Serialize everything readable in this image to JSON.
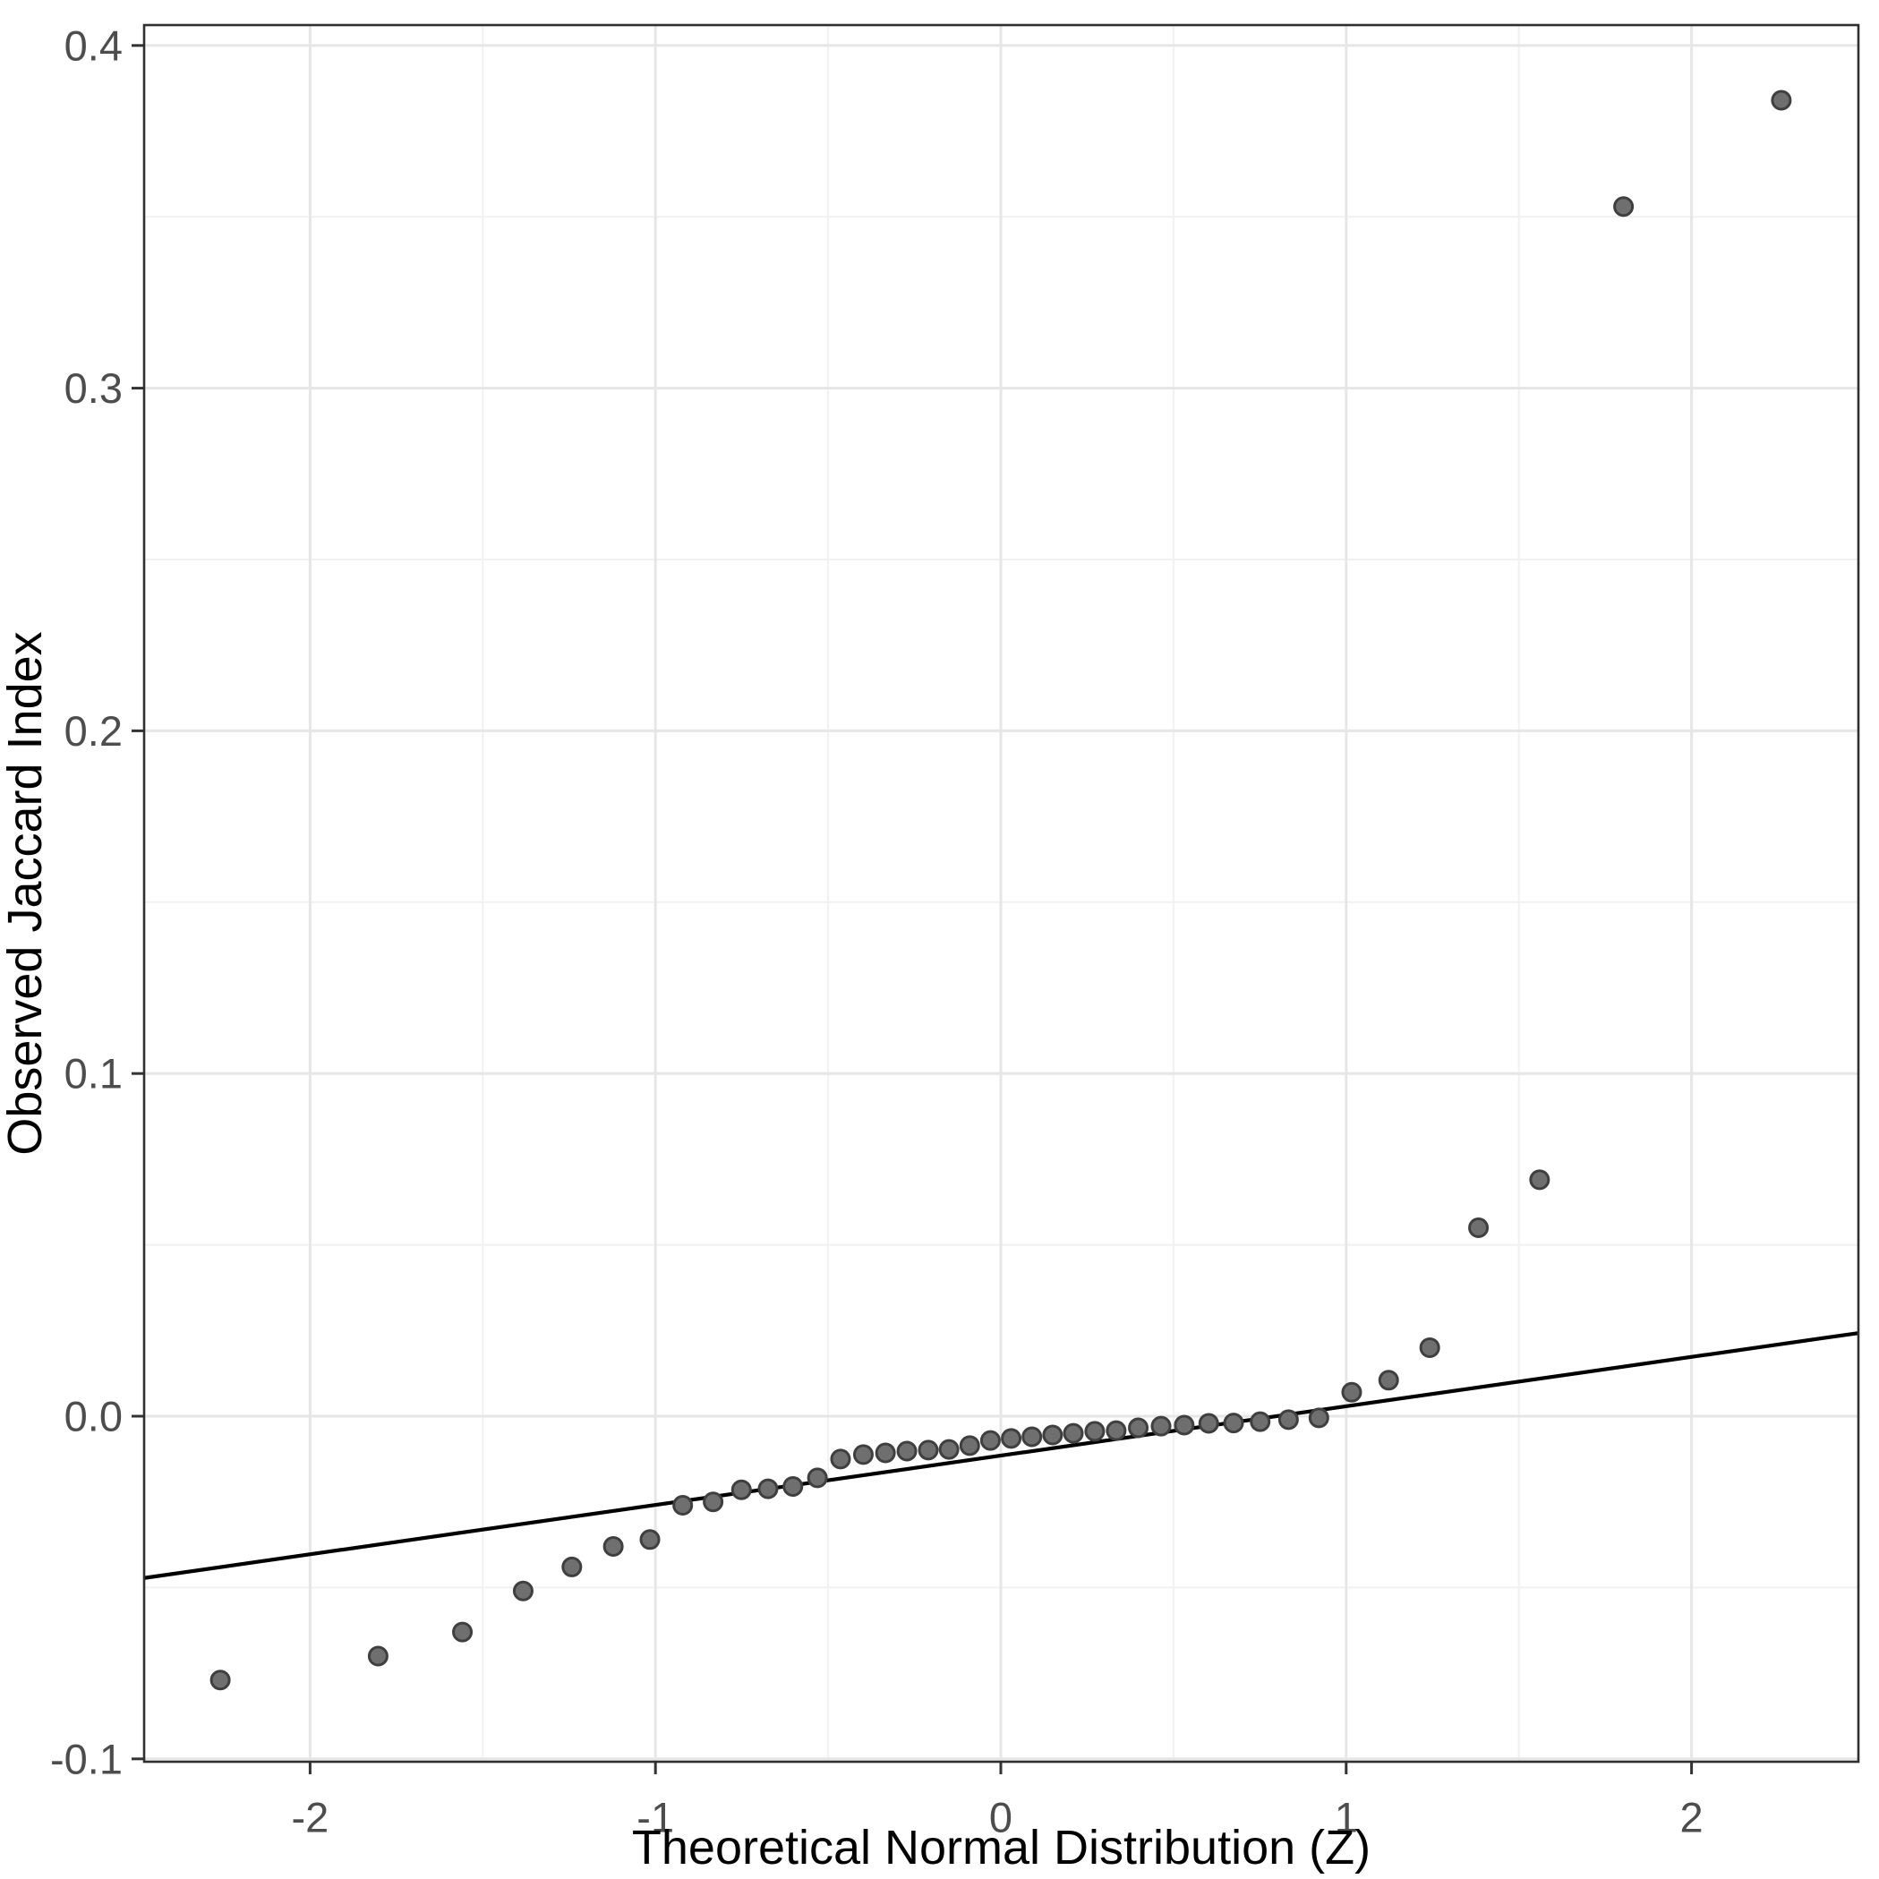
{
  "chart_data": {
    "type": "scatter",
    "subtype": "qq-plot",
    "title": "",
    "xlabel": "Theoretical Normal Distribution (Z)",
    "ylabel": "Observed Jaccard Index",
    "x_ticks": [
      -2,
      -1,
      0,
      1,
      2
    ],
    "x_tick_labels": [
      "-2",
      "-1",
      "0",
      "1",
      "2"
    ],
    "x_minor_ticks": [
      -1.5,
      -0.5,
      0.5,
      1.5
    ],
    "y_ticks": [
      -0.1,
      0.0,
      0.1,
      0.2,
      0.3,
      0.4
    ],
    "y_tick_labels": [
      "-0.1",
      "0.0",
      "0.1",
      "0.2",
      "0.3",
      "0.4"
    ],
    "y_minor_ticks": [
      -0.05,
      0.05,
      0.15,
      0.25,
      0.35
    ],
    "xlim": [
      -2.48,
      2.48
    ],
    "ylim": [
      -0.1,
      0.406
    ],
    "grid": true,
    "legend": "none",
    "n_points": 42,
    "points": {
      "z": [
        -2.26,
        -1.803,
        -1.559,
        -1.383,
        -1.242,
        -1.122,
        -1.016,
        -0.921,
        -0.833,
        -0.751,
        -0.674,
        -0.602,
        -0.531,
        -0.464,
        -0.398,
        -0.334,
        -0.272,
        -0.21,
        -0.15,
        -0.09,
        -0.03,
        0.03,
        0.09,
        0.15,
        0.21,
        0.272,
        0.334,
        0.398,
        0.464,
        0.531,
        0.602,
        0.674,
        0.751,
        0.833,
        0.921,
        1.016,
        1.123,
        1.242,
        1.383,
        1.56,
        1.803,
        2.26
      ],
      "observed": [
        -0.077,
        -0.07,
        -0.063,
        -0.051,
        -0.044,
        -0.038,
        -0.036,
        -0.026,
        -0.025,
        -0.0215,
        -0.0212,
        -0.0205,
        -0.018,
        -0.0125,
        -0.0112,
        -0.0107,
        -0.0102,
        -0.0099,
        -0.0097,
        -0.0086,
        -0.0071,
        -0.0065,
        -0.006,
        -0.0055,
        -0.005,
        -0.0044,
        -0.0042,
        -0.0034,
        -0.0029,
        -0.0026,
        -0.0021,
        -0.002,
        -0.0016,
        -0.001,
        -0.0005,
        0.007,
        0.0105,
        0.02,
        0.055,
        0.069,
        0.353,
        0.384
      ]
    },
    "reference_line": {
      "intercept": -0.0115,
      "slope": 0.0144
    },
    "colors": {
      "background": "#ffffff",
      "panel_background": "#ffffff",
      "panel_border": "#2f2f2f",
      "grid_major": "#e6e6e6",
      "grid_minor": "#f1f1f1",
      "point_fill": "#6f6f6f",
      "point_stroke": "#3f3f3f",
      "line": "#000000",
      "tick_mark": "#333333",
      "tick_label": "#4d4d4d",
      "axis_title": "#000000"
    }
  }
}
